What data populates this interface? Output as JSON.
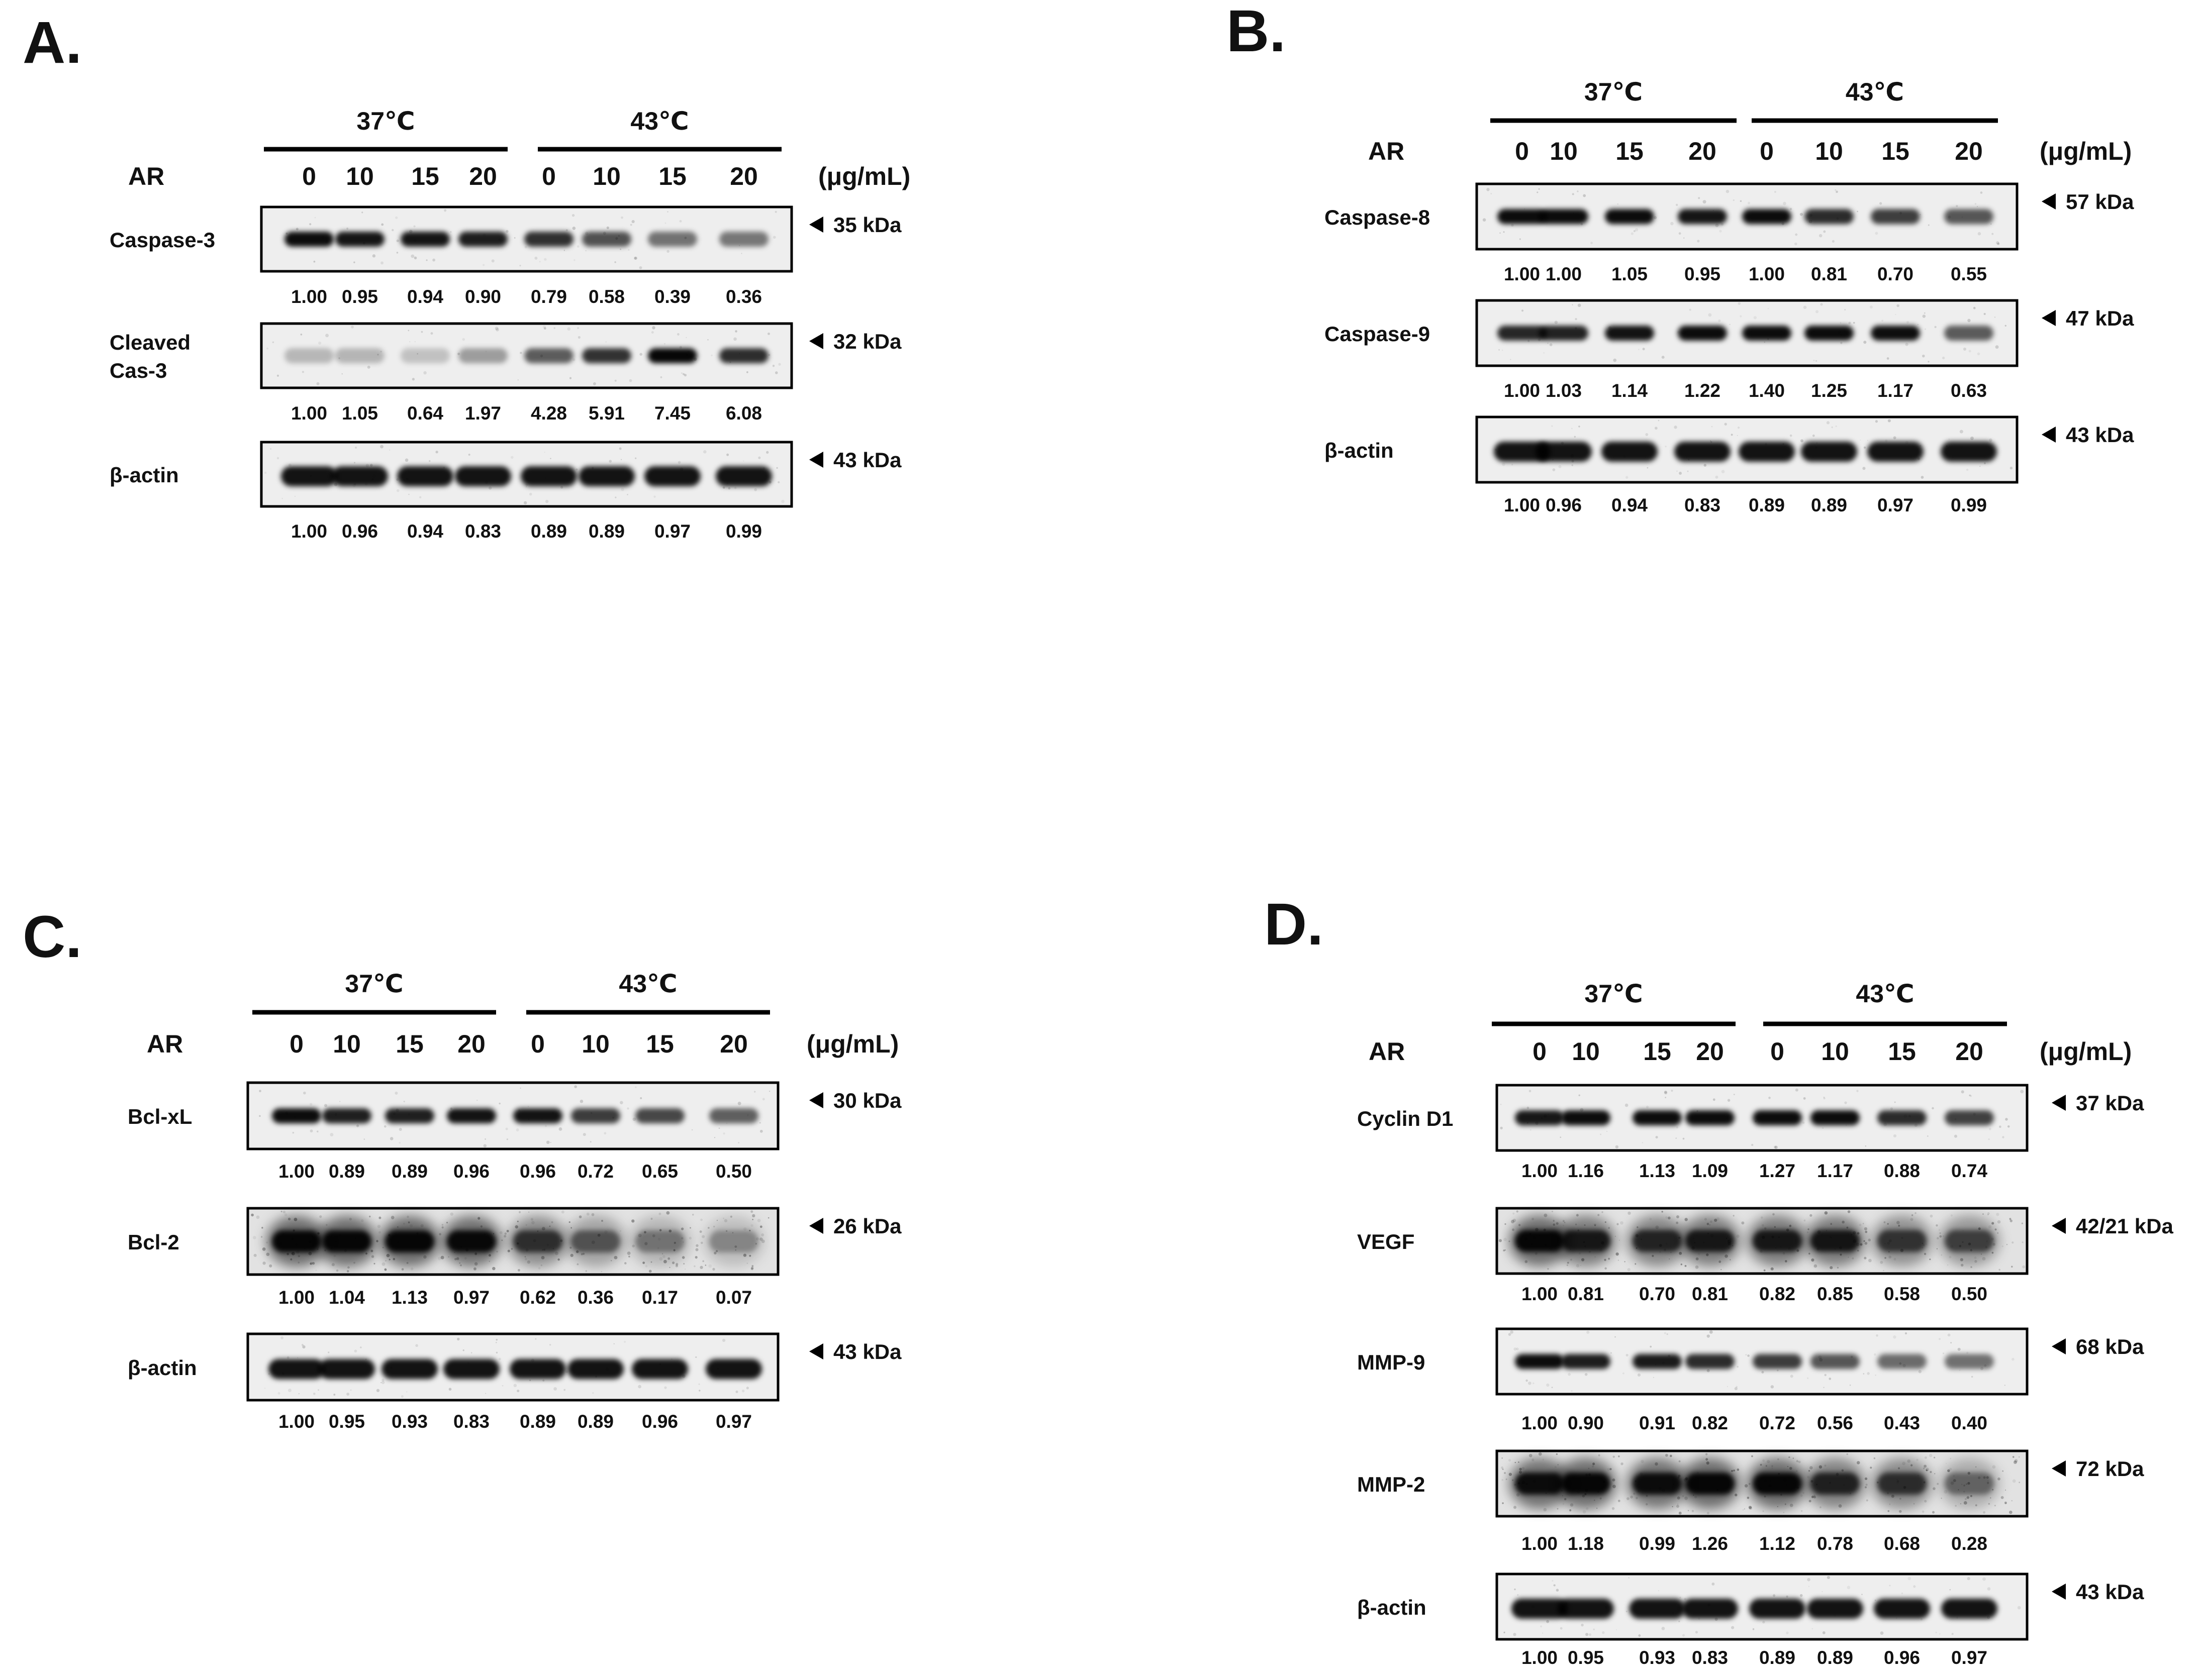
{
  "panels": [
    {
      "letter": "A.",
      "treatment_label": "AR",
      "groups": [
        "37℃",
        "43℃"
      ],
      "doses": [
        "0",
        "10",
        "15",
        "20",
        "0",
        "10",
        "15",
        "20"
      ],
      "unit": "(μg/mL)",
      "blots": [
        {
          "protein": [
            "Caspase-3"
          ],
          "kda": "35 kDa",
          "values": [
            "1.00",
            "0.95",
            "0.94",
            "0.90",
            "0.79",
            "0.58",
            "0.39",
            "0.36"
          ],
          "intensity": [
            1.0,
            0.95,
            0.94,
            0.9,
            0.79,
            0.58,
            0.39,
            0.36
          ]
        },
        {
          "protein": [
            "Cleaved",
            "Cas-3"
          ],
          "kda": "32 kDa",
          "values": [
            "1.00",
            "1.05",
            "0.64",
            "1.97",
            "4.28",
            "5.91",
            "7.45",
            "6.08"
          ],
          "intensity": [
            1.0,
            1.05,
            0.64,
            1.97,
            4.28,
            5.91,
            7.45,
            6.08
          ]
        },
        {
          "protein": [
            "β-actin"
          ],
          "kda": "43 kDa",
          "values": [
            "1.00",
            "0.96",
            "0.94",
            "0.83",
            "0.89",
            "0.89",
            "0.97",
            "0.99"
          ],
          "intensity": [
            1.0,
            0.96,
            0.94,
            0.83,
            0.89,
            0.89,
            0.97,
            0.99
          ]
        }
      ]
    },
    {
      "letter": "B.",
      "treatment_label": "AR",
      "groups": [
        "37℃",
        "43℃"
      ],
      "doses": [
        "0",
        "10",
        "15",
        "20",
        "0",
        "10",
        "15",
        "20"
      ],
      "unit": "(μg/mL)",
      "blots": [
        {
          "protein": [
            "Caspase-8"
          ],
          "kda": "57 kDa",
          "values": [
            "1.00",
            "1.00",
            "1.05",
            "0.95",
            "1.00",
            "0.81",
            "0.70",
            "0.55"
          ],
          "intensity": [
            1.0,
            1.0,
            1.05,
            0.95,
            1.0,
            0.81,
            0.7,
            0.55
          ]
        },
        {
          "protein": [
            "Caspase-9"
          ],
          "kda": "47 kDa",
          "values": [
            "1.00",
            "1.03",
            "1.14",
            "1.22",
            "1.40",
            "1.25",
            "1.17",
            "0.63"
          ],
          "intensity": [
            1.0,
            1.03,
            1.14,
            1.22,
            1.4,
            1.25,
            1.17,
            0.63
          ]
        },
        {
          "protein": [
            "β-actin"
          ],
          "kda": "43 kDa",
          "values": [
            "1.00",
            "0.96",
            "0.94",
            "0.83",
            "0.89",
            "0.89",
            "0.97",
            "0.99"
          ],
          "intensity": [
            1.0,
            0.96,
            0.94,
            0.83,
            0.89,
            0.89,
            0.97,
            0.99
          ]
        }
      ]
    },
    {
      "letter": "C.",
      "treatment_label": "AR",
      "groups": [
        "37℃",
        "43℃"
      ],
      "doses": [
        "0",
        "10",
        "15",
        "20",
        "0",
        "10",
        "15",
        "20"
      ],
      "unit": "(μg/mL)",
      "blots": [
        {
          "protein": [
            "Bcl-xL"
          ],
          "kda": "30 kDa",
          "values": [
            "1.00",
            "0.89",
            "0.89",
            "0.96",
            "0.96",
            "0.72",
            "0.65",
            "0.50"
          ],
          "intensity": [
            1.0,
            0.89,
            0.89,
            0.96,
            0.96,
            0.72,
            0.65,
            0.5
          ]
        },
        {
          "protein": [
            "Bcl-2"
          ],
          "kda": "26 kDa",
          "values": [
            "1.00",
            "1.04",
            "1.13",
            "0.97",
            "0.62",
            "0.36",
            "0.17",
            "0.07"
          ],
          "intensity": [
            1.0,
            1.04,
            1.13,
            0.97,
            0.62,
            0.36,
            0.17,
            0.07
          ]
        },
        {
          "protein": [
            "β-actin"
          ],
          "kda": "43 kDa",
          "values": [
            "1.00",
            "0.95",
            "0.93",
            "0.83",
            "0.89",
            "0.89",
            "0.96",
            "0.97"
          ],
          "intensity": [
            1.0,
            0.95,
            0.93,
            0.83,
            0.89,
            0.89,
            0.96,
            0.97
          ]
        }
      ]
    },
    {
      "letter": "D.",
      "treatment_label": "AR",
      "groups": [
        "37℃",
        "43℃"
      ],
      "doses": [
        "0",
        "10",
        "15",
        "20",
        "0",
        "10",
        "15",
        "20"
      ],
      "unit": "(μg/mL)",
      "blots": [
        {
          "protein": [
            "Cyclin D1"
          ],
          "kda": "37 kDa",
          "values": [
            "1.00",
            "1.16",
            "1.13",
            "1.09",
            "1.27",
            "1.17",
            "0.88",
            "0.74"
          ],
          "intensity": [
            1.0,
            1.16,
            1.13,
            1.09,
            1.27,
            1.17,
            0.88,
            0.74
          ]
        },
        {
          "protein": [
            "VEGF"
          ],
          "kda": "42/21 kDa",
          "values": [
            "1.00",
            "0.81",
            "0.70",
            "0.81",
            "0.82",
            "0.85",
            "0.58",
            "0.50"
          ],
          "intensity": [
            1.0,
            0.81,
            0.7,
            0.81,
            0.82,
            0.85,
            0.58,
            0.5
          ]
        },
        {
          "protein": [
            "MMP-9"
          ],
          "kda": "68 kDa",
          "values": [
            "1.00",
            "0.90",
            "0.91",
            "0.82",
            "0.72",
            "0.56",
            "0.43",
            "0.40"
          ],
          "intensity": [
            1.0,
            0.9,
            0.91,
            0.82,
            0.72,
            0.56,
            0.43,
            0.4
          ]
        },
        {
          "protein": [
            "MMP-2"
          ],
          "kda": "72 kDa",
          "values": [
            "1.00",
            "1.18",
            "0.99",
            "1.26",
            "1.12",
            "0.78",
            "0.68",
            "0.28"
          ],
          "intensity": [
            1.0,
            1.18,
            0.99,
            1.26,
            1.12,
            0.78,
            0.68,
            0.28
          ]
        },
        {
          "protein": [
            "β-actin"
          ],
          "kda": "43 kDa",
          "values": [
            "1.00",
            "0.95",
            "0.93",
            "0.83",
            "0.89",
            "0.89",
            "0.96",
            "0.97"
          ],
          "intensity": [
            1.0,
            0.95,
            0.93,
            0.83,
            0.89,
            0.89,
            0.96,
            0.97
          ]
        }
      ]
    }
  ]
}
